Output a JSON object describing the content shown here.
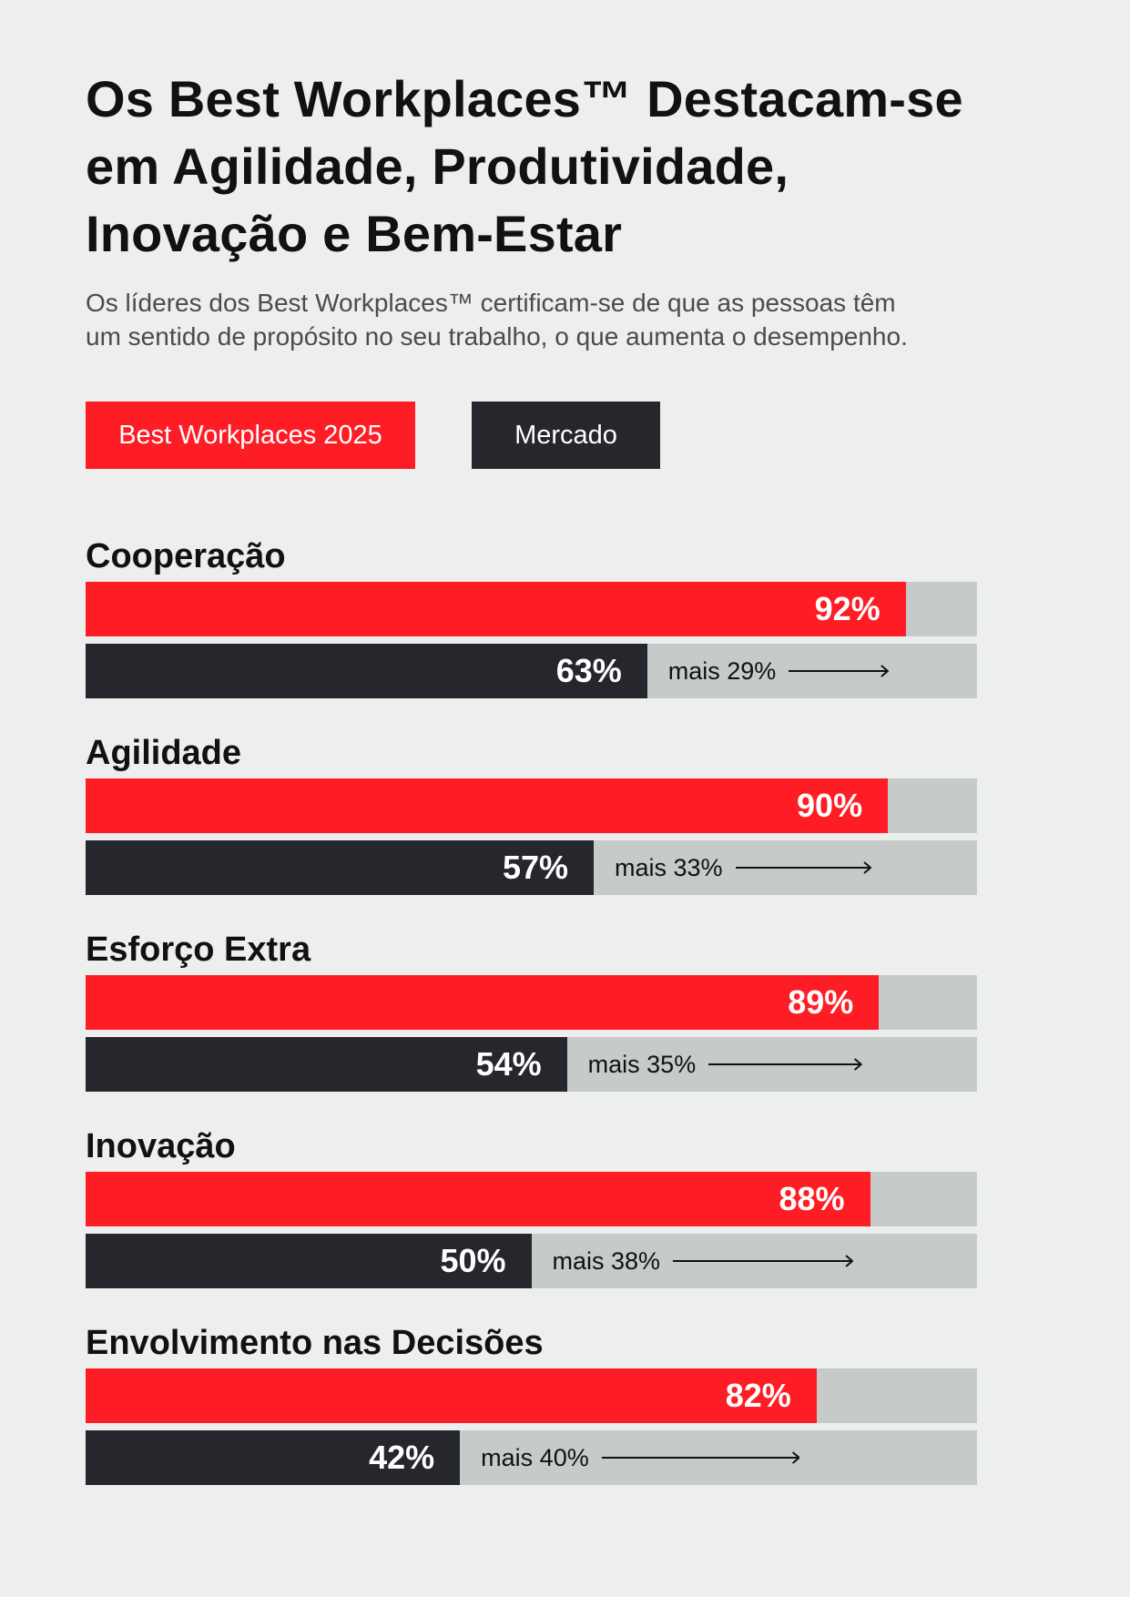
{
  "header": {
    "title_lines": [
      "Os Best Workplaces™ Destacam-se",
      "em Agilidade, Produtividade,",
      "Inovação e Bem-Estar"
    ],
    "subtitle_lines": [
      "Os líderes dos Best Workplaces™ certificam-se de que as pessoas têm",
      "um sentido de propósito no seu trabalho, o que aumenta o desempenho."
    ]
  },
  "legend": {
    "best": "Best Workplaces 2025",
    "market": "Mercado"
  },
  "colors": {
    "best": "#ff1d25",
    "market": "#25272d",
    "track": "#c6cac9",
    "background": "#edefee"
  },
  "chart_data": {
    "type": "bar",
    "orientation": "horizontal",
    "xlim": [
      0,
      100
    ],
    "unit": "%",
    "categories": [
      "Cooperação",
      "Agilidade",
      "Esforço Extra",
      "Inovação",
      "Envolvimento nas Decisões"
    ],
    "series": [
      {
        "name": "Best Workplaces 2025",
        "values": [
          92,
          90,
          89,
          88,
          82
        ],
        "labels": [
          "92%",
          "90%",
          "89%",
          "88%",
          "82%"
        ]
      },
      {
        "name": "Mercado",
        "values": [
          63,
          57,
          54,
          50,
          42
        ],
        "labels": [
          "63%",
          "57%",
          "54%",
          "50%",
          "42%"
        ]
      }
    ],
    "annotations": [
      "mais 29%",
      "mais 33%",
      "mais 35%",
      "mais 38%",
      "mais 40%"
    ]
  }
}
